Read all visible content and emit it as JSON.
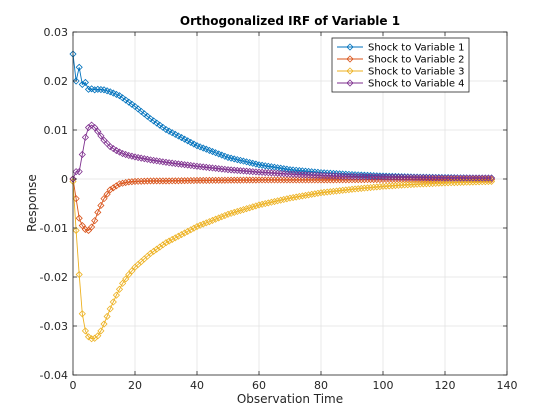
{
  "chart_data": {
    "type": "line",
    "title": "Orthogonalized IRF of Variable 1",
    "xlabel": "Observation Time",
    "ylabel": "Response",
    "xlim": [
      0,
      140
    ],
    "ylim": [
      -0.04,
      0.03
    ],
    "xticks": [
      0,
      20,
      40,
      60,
      80,
      100,
      120,
      140
    ],
    "xtick_labels": [
      "0",
      "20",
      "40",
      "60",
      "80",
      "100",
      "120",
      "140"
    ],
    "yticks": [
      -0.04,
      -0.03,
      -0.02,
      -0.01,
      0,
      0.01,
      0.02,
      0.03
    ],
    "ytick_labels": [
      "-0.04",
      "-0.03",
      "-0.02",
      "-0.01",
      "0",
      "0.01",
      "0.02",
      "0.03"
    ],
    "grid": true,
    "legend_position": "top-right",
    "marker": "diamond",
    "series": [
      {
        "name": "Shock to Variable 1",
        "color": "#0072BD",
        "x": [
          0,
          1,
          2,
          3,
          4,
          5,
          6,
          7,
          8,
          10,
          12,
          15,
          20,
          25,
          30,
          40,
          50,
          60,
          70,
          80,
          90,
          100,
          110,
          120,
          130,
          135
        ],
        "y": [
          0.0255,
          0.02,
          0.0228,
          0.0193,
          0.0197,
          0.0183,
          0.0184,
          0.0182,
          0.0183,
          0.0182,
          0.0178,
          0.017,
          0.0148,
          0.0123,
          0.0101,
          0.0068,
          0.0044,
          0.0029,
          0.0019,
          0.0013,
          0.0009,
          0.0006,
          0.0004,
          0.0003,
          0.0002,
          0.0002
        ]
      },
      {
        "name": "Shock to Variable 2",
        "color": "#D95319",
        "x": [
          0,
          1,
          2,
          3,
          4,
          5,
          6,
          7,
          8,
          10,
          12,
          15,
          18,
          20,
          25,
          30,
          40,
          60,
          80,
          100,
          120,
          135
        ],
        "y": [
          0.0,
          -0.004,
          -0.008,
          -0.0095,
          -0.0103,
          -0.0105,
          -0.0098,
          -0.0085,
          -0.0068,
          -0.004,
          -0.0022,
          -0.001,
          -0.0006,
          -0.0005,
          -0.0004,
          -0.0004,
          -0.0003,
          -0.0002,
          -0.0002,
          -0.0001,
          -0.0001,
          -0.0001
        ]
      },
      {
        "name": "Shock to Variable 3",
        "color": "#EDB120",
        "x": [
          0,
          1,
          2,
          3,
          4,
          5,
          6,
          7,
          8,
          9,
          10,
          12,
          14,
          16,
          18,
          20,
          25,
          30,
          40,
          50,
          60,
          70,
          80,
          90,
          100,
          110,
          120,
          130,
          135
        ],
        "y": [
          -0.0005,
          -0.0105,
          -0.0195,
          -0.0275,
          -0.031,
          -0.0322,
          -0.0326,
          -0.0325,
          -0.032,
          -0.031,
          -0.0296,
          -0.0265,
          -0.0237,
          -0.0213,
          -0.0195,
          -0.018,
          -0.0152,
          -0.013,
          -0.0097,
          -0.0072,
          -0.0053,
          -0.0039,
          -0.0028,
          -0.0021,
          -0.0015,
          -0.0011,
          -0.0008,
          -0.0006,
          -0.0005
        ]
      },
      {
        "name": "Shock to Variable 4",
        "color": "#7E2F8E",
        "x": [
          0,
          1,
          2,
          3,
          4,
          5,
          6,
          7,
          8,
          9,
          10,
          12,
          14,
          16,
          18,
          20,
          25,
          30,
          40,
          50,
          60,
          70,
          80,
          90,
          100,
          110,
          120,
          135
        ],
        "y": [
          0.0,
          0.0015,
          0.0015,
          0.005,
          0.0085,
          0.0105,
          0.011,
          0.0105,
          0.0097,
          0.0088,
          0.0079,
          0.0066,
          0.0058,
          0.0052,
          0.0048,
          0.0045,
          0.0039,
          0.0034,
          0.0026,
          0.0019,
          0.0014,
          0.001,
          0.0007,
          0.0005,
          0.0004,
          0.0003,
          0.0002,
          0.0002
        ]
      }
    ]
  }
}
